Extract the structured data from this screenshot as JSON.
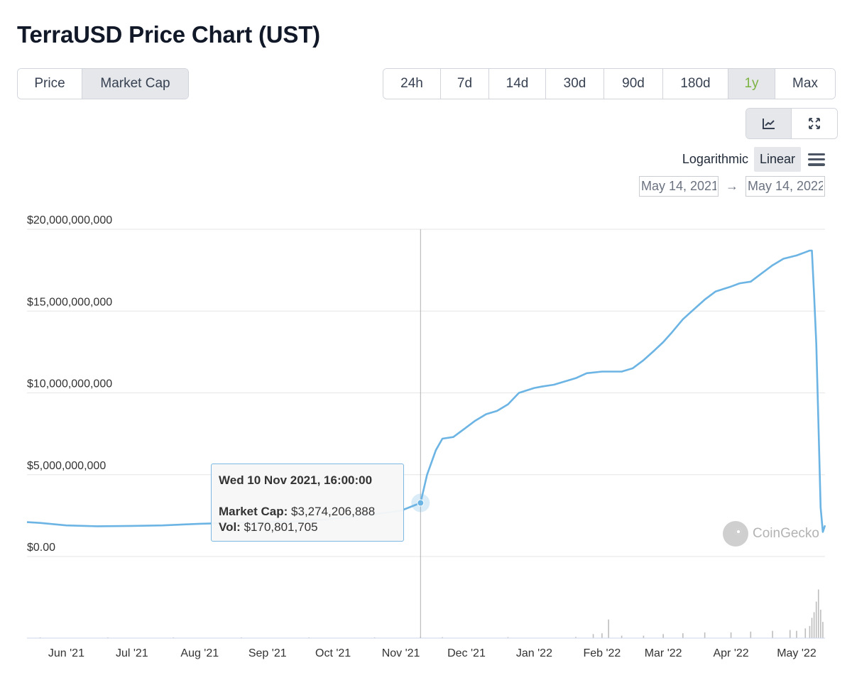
{
  "page": {
    "title": "TerraUSD Price Chart (UST)"
  },
  "type_toggle": [
    {
      "label": "Price",
      "active": false
    },
    {
      "label": "Market Cap",
      "active": true
    }
  ],
  "range_toggle": [
    {
      "label": "24h",
      "active": false
    },
    {
      "label": "7d",
      "active": false
    },
    {
      "label": "14d",
      "active": false
    },
    {
      "label": "30d",
      "active": false
    },
    {
      "label": "90d",
      "active": false
    },
    {
      "label": "180d",
      "active": false
    },
    {
      "label": "1y",
      "active": true
    },
    {
      "label": "Max",
      "active": false
    }
  ],
  "view_toggle": [
    {
      "icon": "line-chart-icon",
      "active": true
    },
    {
      "icon": "expand-icon",
      "active": false
    }
  ],
  "scale": {
    "logarithmic": "Logarithmic",
    "linear": "Linear",
    "selected": "Linear",
    "menu_icon": "hamburger-menu-icon"
  },
  "date_range": {
    "from": "May 14, 2021",
    "arrow": "→",
    "to": "May 14, 2022"
  },
  "tooltip": {
    "date": "Wed 10 Nov 2021, 16:00:00",
    "market_cap_label": "Market Cap:",
    "market_cap_value": "$3,274,206,888",
    "vol_label": "Vol:",
    "vol_value": "$170,801,705"
  },
  "watermark": {
    "text": "CoinGecko",
    "icon": "coingecko-logo-icon"
  },
  "colors": {
    "line": "#6cb4e4",
    "accent_green": "#7cb342",
    "grid": "#e6e6e6",
    "volume": "#bdbdbd"
  },
  "chart_data": {
    "type": "line",
    "x_axis": {
      "type": "date",
      "min": "2021-05-14",
      "max": "2022-05-14"
    },
    "ylim": [
      0,
      20000000000
    ],
    "y_ticks": [
      {
        "value": 0,
        "label": "$0.00"
      },
      {
        "value": 5000000000,
        "label": "$5,000,000,000"
      },
      {
        "value": 10000000000,
        "label": "$10,000,000,000"
      },
      {
        "value": 15000000000,
        "label": "$15,000,000,000"
      },
      {
        "value": 20000000000,
        "label": "$20,000,000,000"
      }
    ],
    "x_ticks": [
      {
        "value": "2021-06-01",
        "label": "Jun '21"
      },
      {
        "value": "2021-07-01",
        "label": "Jul '21"
      },
      {
        "value": "2021-08-01",
        "label": "Aug '21"
      },
      {
        "value": "2021-09-01",
        "label": "Sep '21"
      },
      {
        "value": "2021-10-01",
        "label": "Oct '21"
      },
      {
        "value": "2021-11-01",
        "label": "Nov '21"
      },
      {
        "value": "2021-12-01",
        "label": "Dec '21"
      },
      {
        "value": "2022-01-01",
        "label": "Jan '22"
      },
      {
        "value": "2022-02-01",
        "label": "Feb '22"
      },
      {
        "value": "2022-03-01",
        "label": "Mar '22"
      },
      {
        "value": "2022-04-01",
        "label": "Apr '22"
      },
      {
        "value": "2022-05-01",
        "label": "May '22"
      }
    ],
    "grid": true,
    "legend": "none",
    "series": [
      {
        "x": [
          "2021-05-14",
          "2021-05-20",
          "2021-06-01",
          "2021-06-15",
          "2021-07-01",
          "2021-07-15",
          "2021-08-01",
          "2021-08-15",
          "2021-09-01",
          "2021-09-15",
          "2021-10-01",
          "2021-10-15",
          "2021-11-01",
          "2021-11-10",
          "2021-11-13",
          "2021-11-17",
          "2021-11-20",
          "2021-11-25",
          "2021-12-01",
          "2021-12-05",
          "2021-12-10",
          "2021-12-15",
          "2021-12-20",
          "2021-12-25",
          "2022-01-01",
          "2022-01-05",
          "2022-01-10",
          "2022-01-15",
          "2022-01-20",
          "2022-01-25",
          "2022-02-01",
          "2022-02-05",
          "2022-02-10",
          "2022-02-15",
          "2022-02-20",
          "2022-02-25",
          "2022-03-01",
          "2022-03-05",
          "2022-03-10",
          "2022-03-15",
          "2022-03-20",
          "2022-03-25",
          "2022-04-01",
          "2022-04-05",
          "2022-04-10",
          "2022-04-15",
          "2022-04-20",
          "2022-04-25",
          "2022-05-01",
          "2022-05-05",
          "2022-05-07",
          "2022-05-08",
          "2022-05-09",
          "2022-05-10",
          "2022-05-11",
          "2022-05-12",
          "2022-05-13",
          "2022-05-14"
        ],
        "values": [
          2100000000,
          2050000000,
          1900000000,
          1850000000,
          1870000000,
          1900000000,
          2000000000,
          2050000000,
          2100000000,
          2150000000,
          2300000000,
          2500000000,
          2800000000,
          3274206888,
          5000000000,
          6500000000,
          7200000000,
          7300000000,
          7900000000,
          8300000000,
          8700000000,
          8900000000,
          9300000000,
          10000000000,
          10300000000,
          10400000000,
          10500000000,
          10700000000,
          10900000000,
          11200000000,
          11300000000,
          11300000000,
          11300000000,
          11500000000,
          12000000000,
          12600000000,
          13100000000,
          13700000000,
          14500000000,
          15100000000,
          15700000000,
          16200000000,
          16500000000,
          16700000000,
          16800000000,
          17300000000,
          17800000000,
          18200000000,
          18400000000,
          18600000000,
          18700000000,
          18700000000,
          16000000000,
          13000000000,
          8000000000,
          3000000000,
          1500000000,
          1900000000
        ]
      }
    ],
    "volume": {
      "x": [
        "2021-05-20",
        "2021-06-20",
        "2021-07-20",
        "2021-08-20",
        "2021-09-20",
        "2021-10-20",
        "2021-11-10",
        "2021-11-20",
        "2021-12-20",
        "2022-01-20",
        "2022-01-28",
        "2022-02-01",
        "2022-02-04",
        "2022-02-10",
        "2022-02-20",
        "2022-03-01",
        "2022-03-10",
        "2022-03-20",
        "2022-04-01",
        "2022-04-10",
        "2022-04-20",
        "2022-04-28",
        "2022-05-01",
        "2022-05-05",
        "2022-05-07",
        "2022-05-08",
        "2022-05-09",
        "2022-05-10",
        "2022-05-11",
        "2022-05-12",
        "2022-05-13"
      ],
      "values": [
        40000000,
        30000000,
        30000000,
        40000000,
        50000000,
        60000000,
        170801705,
        120000000,
        120000000,
        150000000,
        500000000,
        600000000,
        2300000000,
        300000000,
        300000000,
        500000000,
        600000000,
        700000000,
        700000000,
        800000000,
        900000000,
        1000000000,
        900000000,
        1200000000,
        1500000000,
        2500000000,
        3200000000,
        4500000000,
        6000000000,
        3500000000,
        2000000000
      ],
      "ylim": [
        0,
        6300000000
      ]
    },
    "tooltip_point": {
      "x": "2021-11-10",
      "value": 3274206888
    }
  }
}
